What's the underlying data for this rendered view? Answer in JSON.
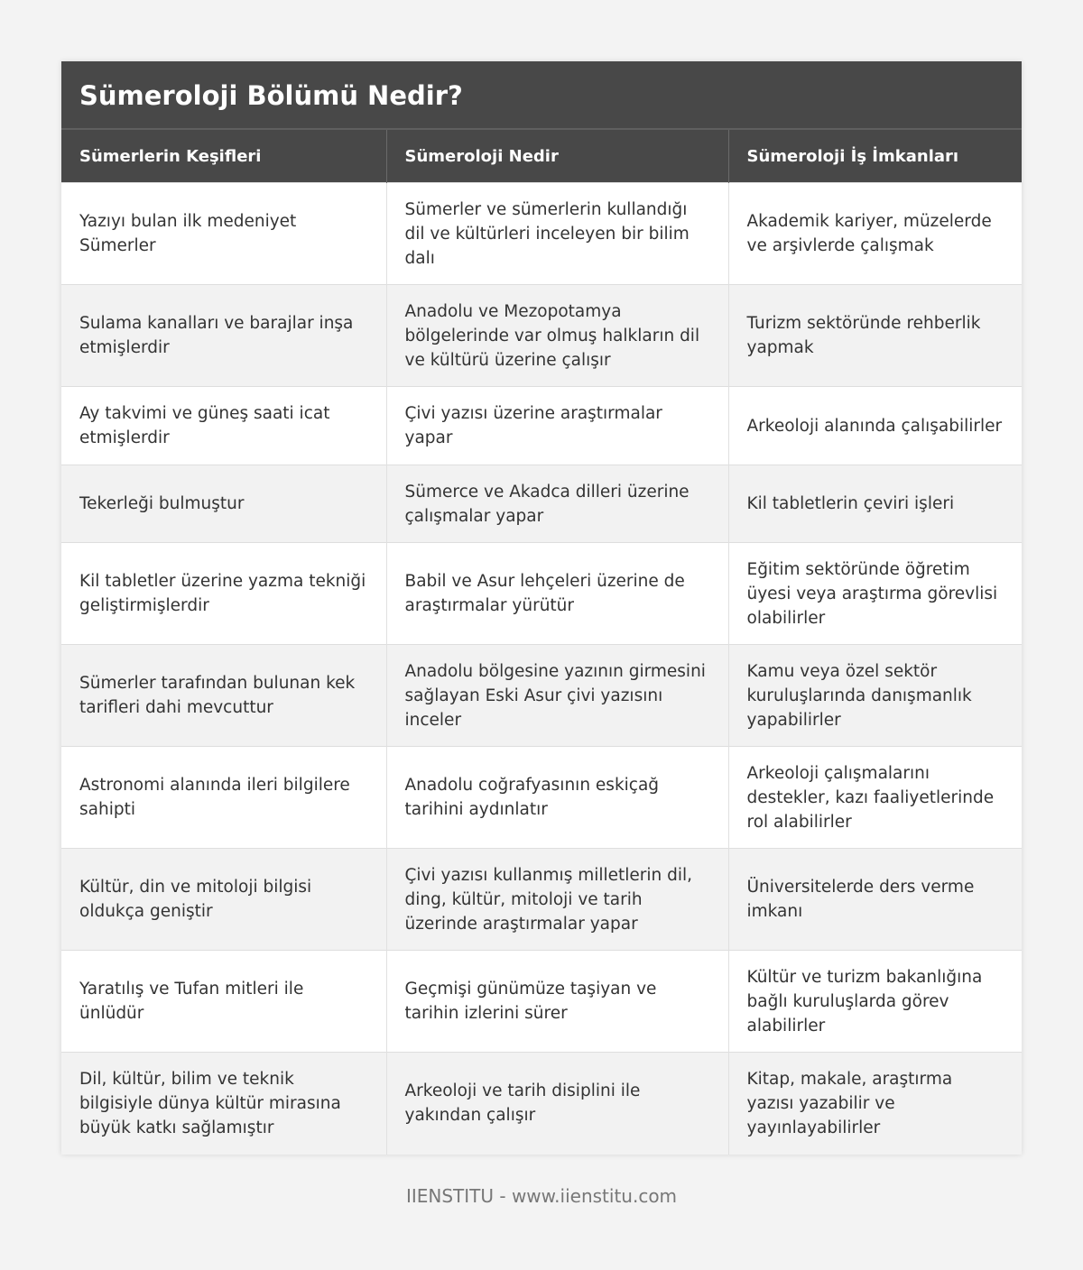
{
  "title": "Sümeroloji Bölümü Nedir?",
  "columns": [
    "Sümerlerin Keşifleri",
    "Sümeroloji Nedir",
    "Sümeroloji İş İmkanları"
  ],
  "rows": [
    [
      "Yazıyı bulan ilk medeniyet Sümerler",
      "Sümerler ve sümerlerin kullandığı dil ve kültürleri inceleyen bir bilim dalı",
      "Akademik kariyer, müzelerde ve arşivlerde çalışmak"
    ],
    [
      "Sulama kanalları ve barajlar inşa etmişlerdir",
      "Anadolu ve Mezopotamya bölgelerinde var olmuş halkların dil ve kültürü üzerine çalışır",
      "Turizm sektöründe rehberlik yapmak"
    ],
    [
      "Ay takvimi ve güneş saati icat etmişlerdir",
      "Çivi yazısı üzerine araştırmalar yapar",
      "Arkeoloji alanında çalışabilirler"
    ],
    [
      "Tekerleği bulmuştur",
      "Sümerce ve Akadca dilleri üzerine çalışmalar yapar",
      "Kil tabletlerin çeviri işleri"
    ],
    [
      "Kil tabletler üzerine yazma tekniği geliştirmişlerdir",
      "Babil ve Asur lehçeleri üzerine de araştırmalar yürütür",
      "Eğitim sektöründe öğretim üyesi veya araştırma görevlisi olabilirler"
    ],
    [
      "Sümerler tarafından bulunan kek tarifleri dahi mevcuttur",
      "Anadolu bölgesine yazının girmesini sağlayan Eski Asur çivi yazısını inceler",
      "Kamu veya özel sektör kuruluşlarında danışmanlık yapabilirler"
    ],
    [
      "Astronomi alanında ileri bilgilere sahipti",
      "Anadolu coğrafyasının eskiçağ tarihini aydınlatır",
      "Arkeoloji çalışmalarını destekler, kazı faaliyetlerinde rol alabilirler"
    ],
    [
      "Kültür, din ve mitoloji bilgisi oldukça geniştir",
      "Çivi yazısı kullanmış milletlerin dil, ding, kültür, mitoloji ve tarih üzerinde araştırmalar yapar",
      "Üniversitelerde ders verme imkanı"
    ],
    [
      "Yaratılış ve Tufan mitleri ile ünlüdür",
      "Geçmişi günümüze taşiyan ve tarihin izlerini sürer",
      "Kültür ve turizm bakanlığına bağlı kuruluşlarda görev alabilirler"
    ],
    [
      "Dil, kültür, bilim ve teknik bilgisiyle dünya kültür mirasına büyük katkı sağlamıştır",
      "Arkeoloji ve tarih disiplini ile yakından çalışır",
      "Kitap, makale, araştırma yazısı yazabilir ve yayınlayabilirler"
    ]
  ],
  "footer": "IIENSTITU - www.iienstitu.com"
}
